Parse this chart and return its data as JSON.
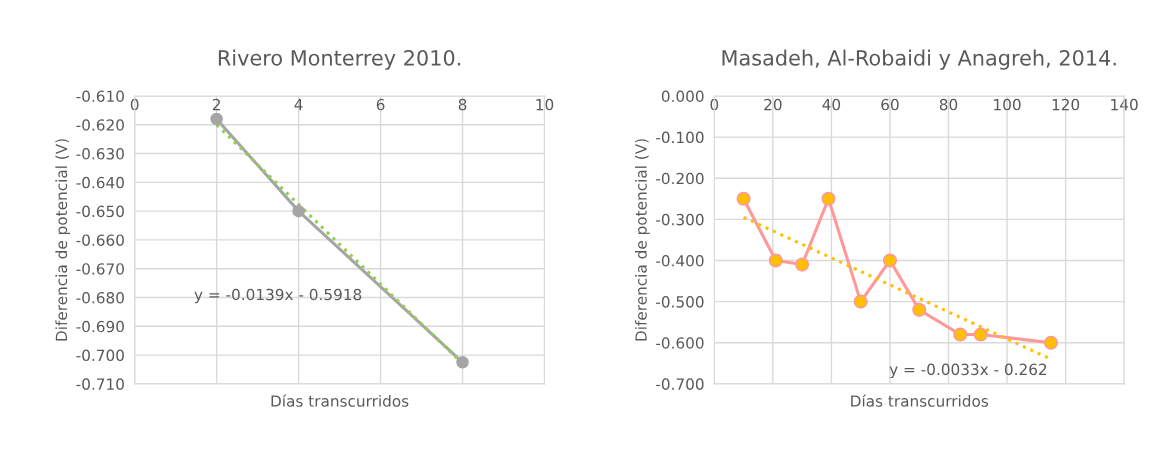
{
  "chart_data": [
    {
      "type": "line",
      "title": "Rivero Monterrey 2010.",
      "xlabel": "Días transcurridos",
      "ylabel": "Diferencia de potencial (V)",
      "xlim": [
        0,
        10
      ],
      "xticks": [
        0,
        2,
        4,
        6,
        8,
        10
      ],
      "ylim": [
        -0.71,
        -0.61
      ],
      "yticks": [
        {
          "value": -0.71,
          "label": "-0.710"
        },
        {
          "value": -0.7,
          "label": "-0.700"
        },
        {
          "value": -0.69,
          "label": "-0.690"
        },
        {
          "value": -0.68,
          "label": "-0.680"
        },
        {
          "value": -0.67,
          "label": "-0.670"
        },
        {
          "value": -0.66,
          "label": "-0.660"
        },
        {
          "value": -0.65,
          "label": "-0.650"
        },
        {
          "value": -0.64,
          "label": "-0.640"
        },
        {
          "value": -0.63,
          "label": "-0.630"
        },
        {
          "value": -0.62,
          "label": "-0.620"
        },
        {
          "value": -0.61,
          "label": "-0.610"
        }
      ],
      "grid": true,
      "legend": false,
      "series": [
        {
          "color": "#a5a5a5",
          "marker": "circle",
          "line_style": "solid",
          "x": [
            2,
            4,
            8
          ],
          "values": [
            -0.618,
            -0.65,
            -0.7025
          ]
        },
        {
          "color": "#92d050",
          "marker": "none",
          "line_style": "dotted",
          "x": [
            2,
            8
          ],
          "values": [
            -0.62,
            -0.703
          ]
        }
      ],
      "annotations": [
        "y = -0.0139x - 0.5918"
      ]
    },
    {
      "type": "line",
      "title": "Masadeh, Al-Robaidi y Anagreh, 2014.",
      "xlabel": "Días transcurridos",
      "ylabel": "Diferencia de potencial (V)",
      "xlim": [
        0,
        140
      ],
      "xticks": [
        0,
        20,
        40,
        60,
        80,
        100,
        120,
        140
      ],
      "ylim": [
        -0.7,
        0
      ],
      "yticks": [
        {
          "value": -0.7,
          "label": "-0.700"
        },
        {
          "value": -0.6,
          "label": "-0.600"
        },
        {
          "value": -0.5,
          "label": "-0.500"
        },
        {
          "value": -0.4,
          "label": "-0.400"
        },
        {
          "value": -0.3,
          "label": "-0.300"
        },
        {
          "value": -0.2,
          "label": "-0.200"
        },
        {
          "value": -0.1,
          "label": "-0.100"
        },
        {
          "value": 0,
          "label": "0.000"
        }
      ],
      "grid": true,
      "legend": false,
      "series": [
        {
          "color": "#ff9999",
          "marker": "none",
          "line_style": "solid",
          "x": [
            10,
            21,
            30,
            39,
            50,
            60,
            70,
            84,
            91,
            115
          ],
          "values": [
            -0.25,
            -0.4,
            -0.41,
            -0.25,
            -0.5,
            -0.4,
            -0.52,
            -0.58,
            -0.58,
            -0.6
          ]
        },
        {
          "type": "scatter",
          "color": "#ffc000",
          "marker": "circle",
          "x": [
            10,
            21,
            30,
            39,
            50,
            60,
            70,
            84,
            91,
            115
          ],
          "values": [
            -0.25,
            -0.4,
            -0.41,
            -0.25,
            -0.5,
            -0.4,
            -0.52,
            -0.58,
            -0.58,
            -0.6
          ]
        },
        {
          "color": "#ffc000",
          "marker": "none",
          "line_style": "dotted",
          "x": [
            10,
            115
          ],
          "values": [
            -0.295,
            -0.64
          ]
        }
      ],
      "annotations": [
        "y = -0.0033x - 0.262"
      ]
    }
  ]
}
